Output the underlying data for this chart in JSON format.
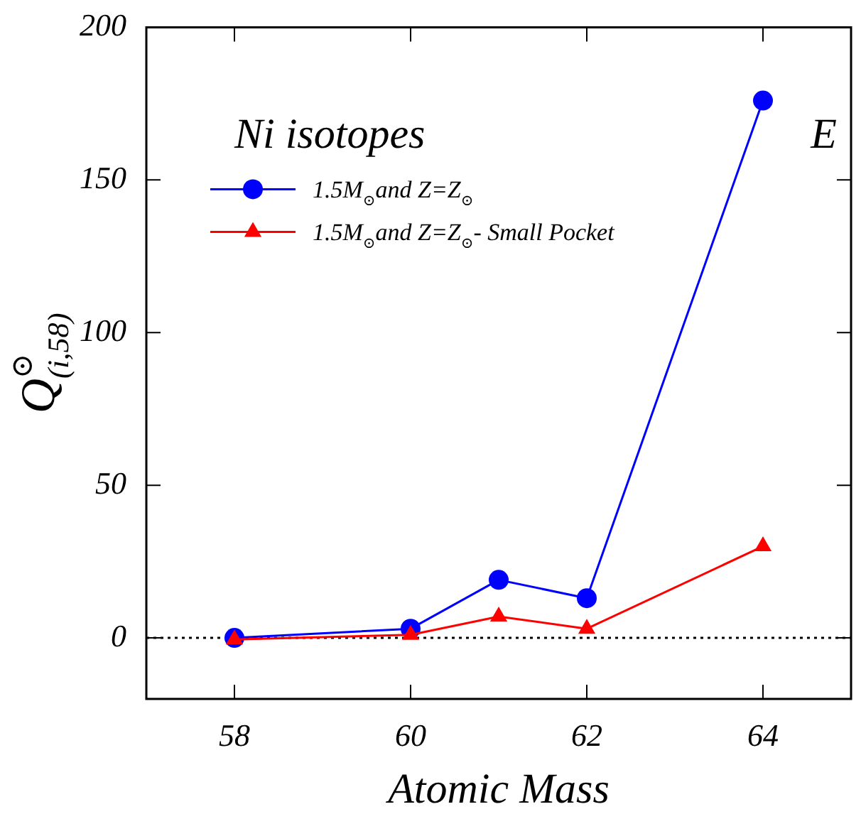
{
  "chart_data": {
    "type": "line",
    "xlabel": "Atomic Mass",
    "ylabel": "Q$^{⊙}$$_{(i,58)}$",
    "legend_title": "Ni isotopes",
    "legend": "top left",
    "annotations": [
      "E"
    ],
    "x": [
      58,
      60,
      61,
      62,
      64
    ],
    "series": [
      {
        "name": "1.5M$_{⊙}$and Z=Z$_{⊙}$",
        "color": "#0000ff",
        "marker": "circle",
        "values": [
          0,
          3,
          19,
          13,
          176
        ]
      },
      {
        "name": "1.5M$_{⊙}$and Z=Z$_{⊙}$- Small Pocket",
        "color": "#ff0000",
        "marker": "triangle",
        "values": [
          -0.5,
          1,
          7,
          3,
          30
        ]
      }
    ],
    "xlim": [
      57,
      65
    ],
    "xticks": [
      58,
      60,
      62,
      64
    ],
    "ylim": [
      -20,
      200
    ],
    "yticks": [
      0,
      50,
      100,
      150,
      200
    ],
    "ref_lines": [
      {
        "axis": "y",
        "value": 0,
        "color": "#000000",
        "line_style": "dotted"
      }
    ]
  }
}
